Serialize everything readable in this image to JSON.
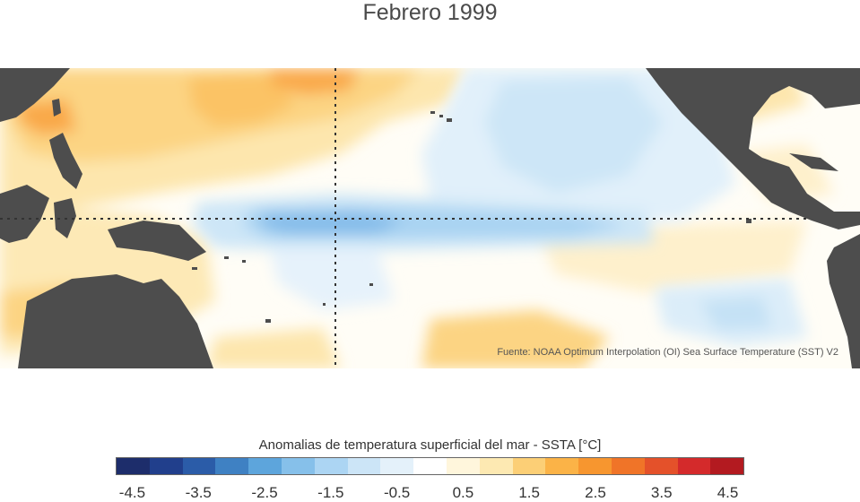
{
  "title": "Febrero 1999",
  "source": "Fuente: NOAA Optimum Interpolation (OI) Sea Surface Temperature (SST) V2",
  "colorbar": {
    "title": "Anomalias de temperatura superficial del mar - SSTA  [°C]",
    "ticks": [
      "-4.5",
      "-3.5",
      "-2.5",
      "-1.5",
      "-0.5",
      "0.5",
      "1.5",
      "2.5",
      "3.5",
      "4.5"
    ],
    "colors": [
      "#1d2d6b",
      "#213f8c",
      "#2b5ca8",
      "#3f81c3",
      "#5da5dc",
      "#86c0ea",
      "#acd5f3",
      "#cce5f7",
      "#e4f1fa",
      "#ffffff",
      "#fff6dc",
      "#fde9b2",
      "#fccf76",
      "#fbb347",
      "#f7962f",
      "#f07428",
      "#e4512a",
      "#d42a2b",
      "#b31a20"
    ]
  },
  "colors": {
    "land": "#4d4d4d",
    "reference_lines": "#333333"
  }
}
